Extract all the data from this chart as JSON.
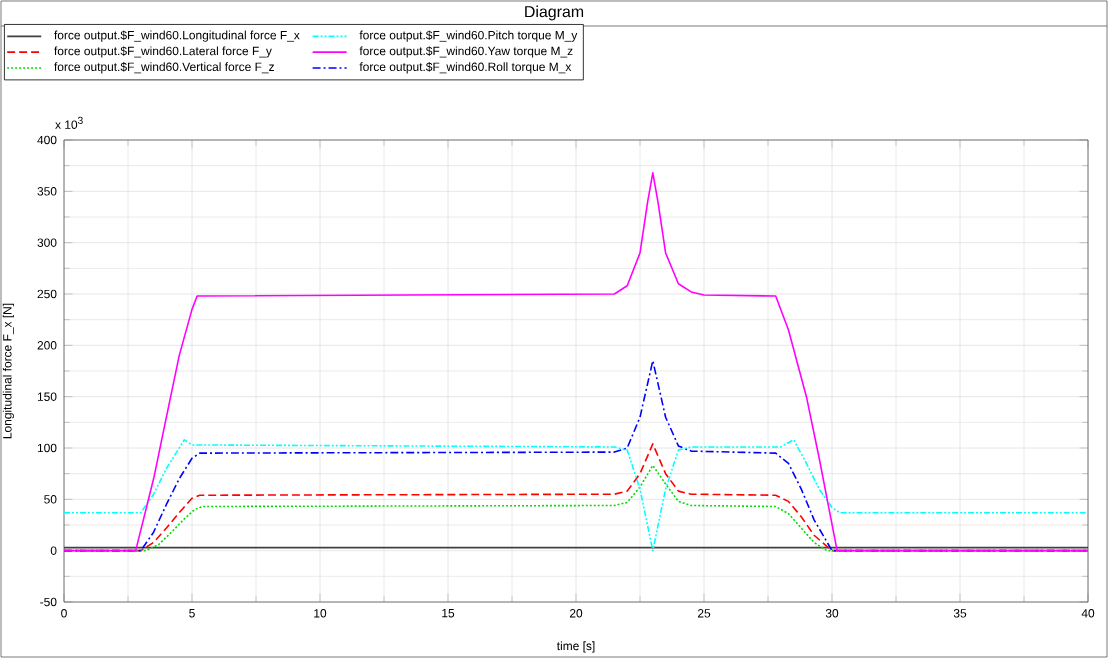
{
  "chart_data": {
    "type": "line",
    "title": "Diagram",
    "xlabel": "time [s]",
    "ylabel": "Longitudinal force F_x [N]",
    "annotations": [
      "x 10$^{3}$"
    ],
    "xlim": [
      0,
      40
    ],
    "xticks": [
      0,
      5,
      10,
      15,
      20,
      25,
      30,
      35,
      40
    ],
    "ylim": [
      -50,
      400
    ],
    "yticks": [
      -50,
      0,
      50,
      100,
      150,
      200,
      250,
      300,
      350,
      400
    ],
    "grid": true,
    "legend": "top",
    "marker": "none",
    "series": [
      {
        "name": "force output.$F_wind60.Longitudinal force F_x",
        "color": "#404040",
        "line_style": "solid",
        "x": [
          0,
          40
        ],
        "values": [
          3,
          3
        ]
      },
      {
        "name": "force output.$F_wind60.Lateral force F_y",
        "color": "#ff0000",
        "line_style": "dashed",
        "x": [
          0,
          3,
          3.5,
          4,
          4.5,
          5,
          5.3,
          21.5,
          22,
          22.5,
          23,
          23.5,
          24,
          24.5,
          27.8,
          28.3,
          28.8,
          29.3,
          30,
          40
        ],
        "values": [
          0,
          0,
          8,
          22,
          37,
          51,
          54,
          55,
          58,
          75,
          104,
          75,
          58,
          55,
          54,
          48,
          33,
          15,
          0,
          0
        ]
      },
      {
        "name": "force output.$F_wind60.Vertical force F_z",
        "color": "#00dd00",
        "line_style": "dotted",
        "x": [
          0,
          3.2,
          3.7,
          4.2,
          4.7,
          5.1,
          5.4,
          21.5,
          22,
          22.5,
          23,
          23.5,
          24,
          24.5,
          27.8,
          28.3,
          28.8,
          29.3,
          29.8,
          40
        ],
        "values": [
          0,
          0,
          6,
          18,
          31,
          40,
          43,
          44,
          47,
          62,
          83,
          65,
          48,
          44,
          43,
          36,
          22,
          8,
          0,
          0
        ]
      },
      {
        "name": "force output.$F_wind60.Roll torque M_x",
        "color": "#0000ff",
        "line_style": "dashdot",
        "x": [
          0,
          3,
          3.5,
          4,
          4.5,
          5,
          5.3,
          21.5,
          22,
          22.5,
          23,
          23.5,
          24,
          24.5,
          27.8,
          28.3,
          28.8,
          29.3,
          30,
          40
        ],
        "values": [
          0,
          0,
          18,
          45,
          70,
          90,
          95,
          96,
          100,
          130,
          185,
          130,
          102,
          97,
          95,
          85,
          60,
          30,
          0,
          0
        ]
      },
      {
        "name": "force output.$F_wind60.Pitch torque M_y",
        "color": "#00ffff",
        "line_style": "dashdotdot",
        "x": [
          0,
          3,
          3.5,
          4,
          4.7,
          5,
          21.5,
          22,
          22.5,
          23,
          23.5,
          24,
          24.5,
          28,
          28.5,
          29,
          29.5,
          30,
          30.3,
          40
        ],
        "values": [
          37,
          37,
          55,
          80,
          108,
          103,
          101,
          98,
          60,
          0,
          60,
          98,
          101,
          101,
          108,
          85,
          60,
          42,
          37,
          37
        ]
      },
      {
        "name": "force output.$F_wind60.Yaw torque M_z",
        "color": "#ff00ff",
        "line_style": "solid",
        "x": [
          0,
          2.8,
          3.5,
          4,
          4.5,
          5,
          5.2,
          21.5,
          22,
          22.5,
          22.8,
          23,
          23.2,
          23.5,
          24,
          24.5,
          25,
          27.8,
          28.3,
          29,
          29.5,
          30.2,
          40
        ],
        "values": [
          0,
          0,
          70,
          130,
          190,
          235,
          248,
          250,
          258,
          290,
          340,
          368,
          340,
          290,
          260,
          252,
          249,
          248,
          215,
          150,
          90,
          0,
          0
        ]
      }
    ]
  }
}
